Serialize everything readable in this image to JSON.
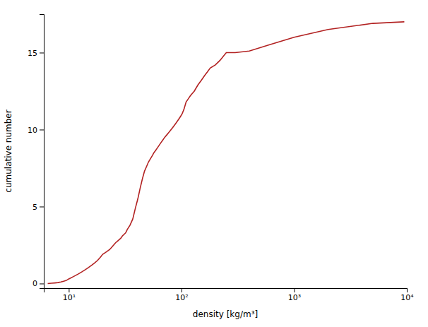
{
  "chart_data": {
    "type": "line",
    "xlabel": "density [kg/m³]",
    "ylabel": "cumulative number",
    "log": "x",
    "color": "#b22222",
    "xlim": [
      6,
      10000
    ],
    "ylim": [
      -0.3,
      17.5
    ],
    "xticks": [
      {
        "value": 10,
        "label": "10¹"
      },
      {
        "value": 100,
        "label": "10²"
      },
      {
        "value": 1000,
        "label": "10³"
      },
      {
        "value": 10000,
        "label": "10⁴"
      }
    ],
    "yticks": [
      0,
      5,
      10,
      15
    ],
    "x": [
      6.5,
      7.0,
      7.5,
      8.0,
      8.5,
      9.0,
      9.5,
      10.0,
      11.0,
      12.0,
      13.0,
      14.0,
      15.0,
      16.0,
      17.0,
      18.0,
      19.0,
      20.0,
      21.0,
      22.0,
      23.0,
      24.0,
      25.0,
      26.0,
      27.0,
      28.0,
      29.0,
      30.0,
      31.0,
      32.0,
      33.0,
      35.0,
      37.0,
      39.0,
      41.0,
      43.0,
      45.0,
      47.0,
      49.0,
      51.0,
      53.0,
      55.0,
      57.0,
      59.0,
      61.0,
      63.0,
      65.0,
      68.0,
      71.0,
      74.0,
      77.0,
      80.0,
      83.0,
      86.0,
      89.0,
      92.0,
      95.0,
      98.0,
      101.0,
      105.0,
      110.0,
      115.0,
      120.0,
      130.0,
      140.0,
      150.0,
      160.0,
      170.0,
      180.0,
      200.0,
      220.0,
      250.0,
      300.0,
      400.0,
      600.0,
      1000.0,
      2000.0,
      5000.0,
      9500.0
    ],
    "values": [
      0.0,
      0.02,
      0.04,
      0.06,
      0.1,
      0.15,
      0.2,
      0.3,
      0.45,
      0.6,
      0.75,
      0.9,
      1.05,
      1.2,
      1.35,
      1.5,
      1.7,
      1.9,
      2.0,
      2.1,
      2.2,
      2.35,
      2.5,
      2.65,
      2.75,
      2.85,
      2.95,
      3.1,
      3.2,
      3.3,
      3.5,
      3.8,
      4.2,
      4.9,
      5.5,
      6.2,
      6.8,
      7.3,
      7.6,
      7.9,
      8.1,
      8.3,
      8.5,
      8.65,
      8.8,
      8.95,
      9.1,
      9.3,
      9.5,
      9.65,
      9.8,
      9.95,
      10.1,
      10.25,
      10.4,
      10.55,
      10.7,
      10.85,
      11.0,
      11.3,
      11.8,
      12.0,
      12.2,
      12.5,
      12.9,
      13.2,
      13.5,
      13.75,
      14.0,
      14.2,
      14.5,
      15.0,
      15.0,
      15.1,
      15.5,
      16.0,
      16.5,
      16.9,
      17.0
    ]
  }
}
